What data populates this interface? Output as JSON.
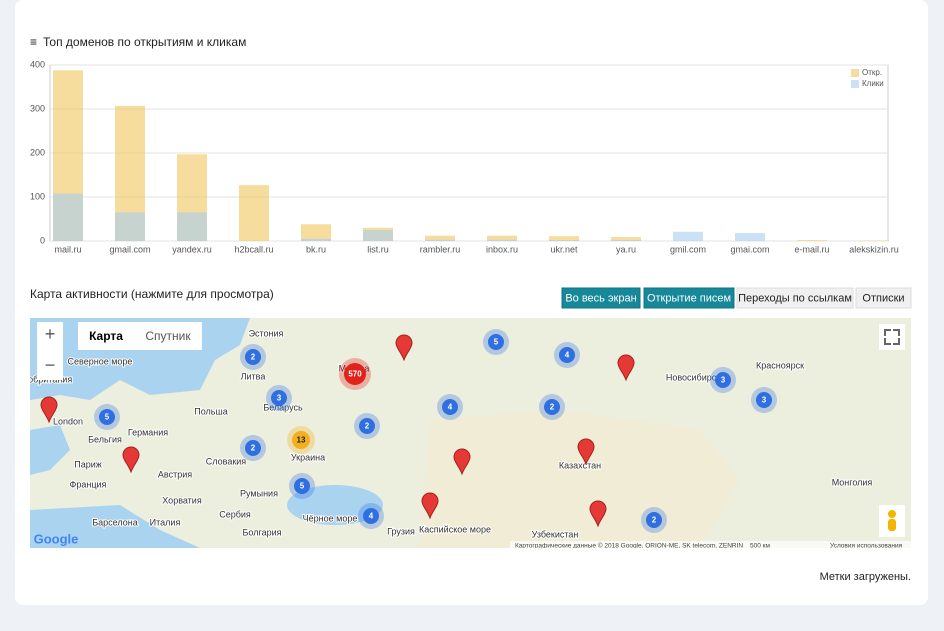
{
  "header": {
    "title": "Топ доменов по открытиям и кликам"
  },
  "chart_data": {
    "type": "bar",
    "categories": [
      "mail.ru",
      "gmail.com",
      "yandex.ru",
      "h2bcall.ru",
      "bk.ru",
      "list.ru",
      "rambler.ru",
      "inbox.ru",
      "ukr.net",
      "ya.ru",
      "gmil.com",
      "gmai.com",
      "e-mail.ru",
      "alekskizin.ru"
    ],
    "series": [
      {
        "name": "Откр.",
        "color": "#f0c75e",
        "values": [
          388,
          307,
          197,
          127,
          38,
          30,
          12,
          12,
          11,
          9,
          0,
          0,
          2,
          1
        ]
      },
      {
        "name": "Клики",
        "color": "#a9cdef",
        "values": [
          108,
          65,
          65,
          0,
          5,
          25,
          3,
          3,
          2,
          2,
          21,
          18,
          0,
          0
        ]
      }
    ],
    "ylim": [
      0,
      400
    ],
    "yticks": [
      0,
      100,
      200,
      300,
      400
    ],
    "grid": true,
    "legend": "top-right"
  },
  "map_section": {
    "title": "Карта активности (нажмите для просмотра)",
    "buttons": [
      "Во весь экран",
      "Открытие писем",
      "Переходы по ссылкам",
      "Отписки"
    ],
    "map_types": [
      "Карта",
      "Спутник"
    ],
    "places": [
      "Эстония",
      "Литва",
      "Беларусь",
      "Польша",
      "Германия",
      "Бельгия",
      "Франция",
      "Украина",
      "Румыния",
      "Словакия",
      "Австрия",
      "Хорватия",
      "Италия",
      "Сербия",
      "Болгария",
      "Грузия",
      "Чёрное море",
      "Казахстан",
      "Узбекистан",
      "Монголия",
      "Новосибирск",
      "Красноярск",
      "Северное море",
      "ликобритания",
      "London",
      "Москва",
      "Каспийское море",
      "Барселона",
      "Париж"
    ],
    "clusters": [
      2,
      3,
      5,
      2,
      13,
      5,
      4,
      570,
      2,
      4,
      5,
      4,
      2,
      3,
      3,
      2
    ],
    "logo": "Google",
    "attribution": "Картографические данные © 2018 Google, ORION-ME, SK telecom, ZENRIN",
    "scale": "500 км",
    "terms": "Условия использования"
  },
  "status": "Метки загружены."
}
